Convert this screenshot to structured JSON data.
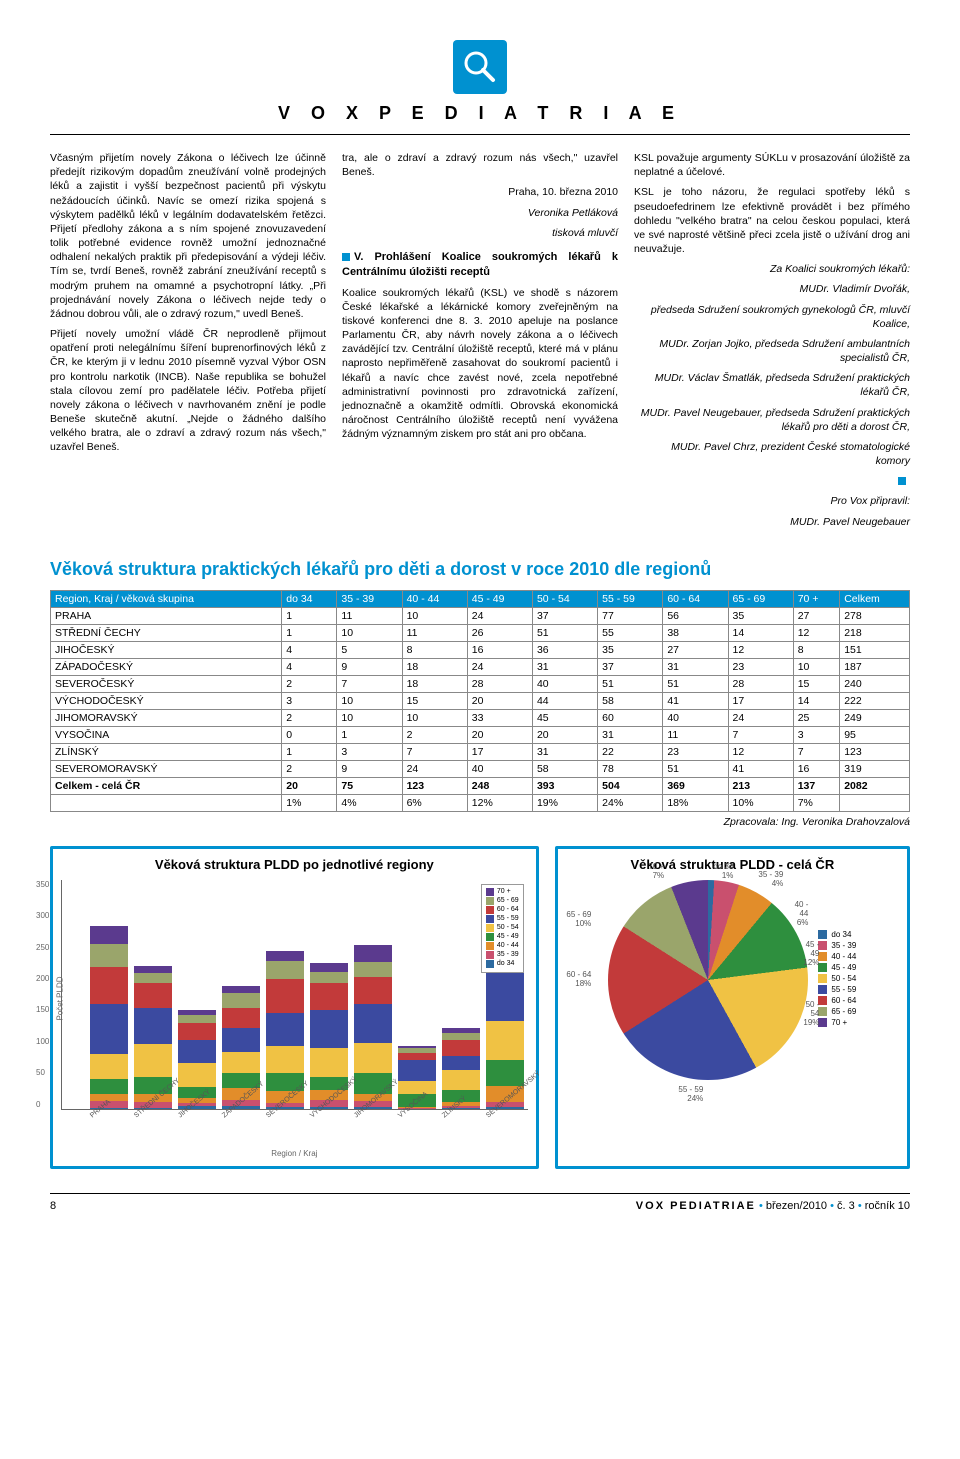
{
  "header": {
    "title": "V O X   P E D I A T R I A E"
  },
  "article": {
    "col1": [
      "Včasným přijetím novely Zákona o léčivech lze účinně předejít rizikovým dopadům zneužívání volně prodejných léků a zajistit i vyšší bezpečnost pacientů při výskytu nežádoucích účinků. Navíc se omezí rizika spojená s výskytem padělků léků v legálním dodavatelském řetězci. Přijetí předlohy zákona a s ním spojené znovuzavedení tolik potřebné evidence rovněž umožní jednoznačné odhalení nekalých praktik při předepisování a výdeji léčiv. Tím se, tvrdí Beneš, rovněž zabrání zneužívání receptů s modrým pruhem na omamné a psychotropní látky. „Při projednávání novely Zákona o léčivech nejde tedy o žádnou dobrou vůli, ale o zdravý rozum,\" uvedl Beneš.",
      "Přijetí novely umožní vládě ČR neprodleně přijmout opatření proti nelegálnímu šíření buprenorfinových léků z ČR, ke kterým ji v lednu 2010 písemně vyzval Výbor OSN pro kontrolu narkotik (INCB). Naše republika se bohužel stala cílovou zemí pro padělatele léčiv. Potřeba přijetí novely zákona o léčivech v navrhovaném znění je podle Beneše skutečně akutní. „Nejde o žádného dalšího velkého bratra, ale o zdraví a zdravý rozum nás všech,\" uzavřel Beneš."
    ],
    "col2_top": "tra, ale o zdraví a zdravý rozum nás všech,\" uzavřel Beneš.",
    "col2_date": "Praha, 10. března 2010",
    "col2_sig1": "Veronika Petláková",
    "col2_sig2": "tisková mluvčí",
    "col2_head": "V. Prohlášení Koalice soukromých lékařů k Centrálnímu úložišti receptů",
    "col2_body": "Koalice soukromých lékařů (KSL) ve shodě s názorem České lékařské a lékárnické komory zveřejněným na tiskové konferenci dne 8. 3. 2010 apeluje na poslance Parlamentu ČR, aby návrh novely zákona a o léčivech zavádějící tzv. Centrální úložiště receptů, které má v plánu naprosto nepřiměřeně zasahovat do soukromí pacientů i lékařů a navíc chce zavést nové, zcela nepotřebné administrativní povinnosti pro zdravotnická zařízení, jednoznačně a okamžitě odmítli. Obrovská ekonomická náročnost Centrálního úložiště receptů není vyvážena žádným významným ziskem pro stát ani pro občana.",
    "col3_p1": "KSL považuje argumenty SÚKLu v prosazování úložiště za neplatné a účelové.",
    "col3_p2": "KSL je toho názoru, že regulaci spotřeby léků s pseudoefedrinem lze efektivně provádět i bez přímého dohledu \"velkého bratra\" na celou českou populaci, která ve své naprosté většině přeci zcela jistě o užívání drog ani neuvažuje.",
    "col3_sig": [
      "Za Koalici soukromých lékařů:",
      "MUDr. Vladimír Dvořák,",
      "předseda Sdružení soukromých gynekologů ČR, mluvčí Koalice,",
      "MUDr. Zorjan Jojko, předseda Sdružení ambulantních specialistů ČR,",
      "MUDr. Václav Šmatlák, předseda Sdružení praktických lékařů ČR,",
      "MUDr. Pavel Neugebauer, předseda Sdružení praktických lékařů pro děti a dorost ČR,",
      "MUDr. Pavel Chrz, prezident České stomatologické komory"
    ],
    "col3_tail1": "Pro Vox připravil:",
    "col3_tail2": "MUDr. Pavel Neugebauer"
  },
  "table_section": {
    "title": "Věková struktura praktických lékařů pro děti a dorost v roce 2010 dle regionů",
    "headers": [
      "Region, Kraj / věková skupina",
      "do 34",
      "35 - 39",
      "40 - 44",
      "45 - 49",
      "50 - 54",
      "55 - 59",
      "60 - 64",
      "65 - 69",
      "70 +",
      "Celkem"
    ],
    "rows": [
      [
        "PRAHA",
        "1",
        "11",
        "10",
        "24",
        "37",
        "77",
        "56",
        "35",
        "27",
        "278"
      ],
      [
        "STŘEDNÍ ČECHY",
        "1",
        "10",
        "11",
        "26",
        "51",
        "55",
        "38",
        "14",
        "12",
        "218"
      ],
      [
        "JIHOČESKÝ",
        "4",
        "5",
        "8",
        "16",
        "36",
        "35",
        "27",
        "12",
        "8",
        "151"
      ],
      [
        "ZÁPADOČESKÝ",
        "4",
        "9",
        "18",
        "24",
        "31",
        "37",
        "31",
        "23",
        "10",
        "187"
      ],
      [
        "SEVEROČESKÝ",
        "2",
        "7",
        "18",
        "28",
        "40",
        "51",
        "51",
        "28",
        "15",
        "240"
      ],
      [
        "VÝCHODOČESKÝ",
        "3",
        "10",
        "15",
        "20",
        "44",
        "58",
        "41",
        "17",
        "14",
        "222"
      ],
      [
        "JIHOMORAVSKÝ",
        "2",
        "10",
        "10",
        "33",
        "45",
        "60",
        "40",
        "24",
        "25",
        "249"
      ],
      [
        "VYSOČINA",
        "0",
        "1",
        "2",
        "20",
        "20",
        "31",
        "11",
        "7",
        "3",
        "95"
      ],
      [
        "ZLÍNSKÝ",
        "1",
        "3",
        "7",
        "17",
        "31",
        "22",
        "23",
        "12",
        "7",
        "123"
      ],
      [
        "SEVEROMORAVSKÝ",
        "2",
        "9",
        "24",
        "40",
        "58",
        "78",
        "51",
        "41",
        "16",
        "319"
      ]
    ],
    "total": [
      "Celkem - celá ČR",
      "20",
      "75",
      "123",
      "248",
      "393",
      "504",
      "369",
      "213",
      "137",
      "2082"
    ],
    "pct": [
      "",
      "1%",
      "4%",
      "6%",
      "12%",
      "19%",
      "24%",
      "18%",
      "10%",
      "7%",
      ""
    ],
    "credit": "Zpracovala: Ing. Veronika Drahovzalová"
  },
  "barchart": {
    "title": "Věková struktura PLDD po jednotlivé regiony",
    "ylabel": "Počet PLDD",
    "xlabel": "Region / Kraj",
    "ymax": 350,
    "yticks": [
      0,
      50,
      100,
      150,
      200,
      250,
      300,
      350
    ],
    "categories": [
      "PRAHA",
      "STŘEDNÍ ČECHY",
      "JIHOČESKÝ",
      "ZÁPADOČESKÝ",
      "SEVEROČESKÝ",
      "VÝCHODOČESKÝ",
      "JIHOMORAVSKÝ",
      "VYSOČINA",
      "ZLÍNSKÝ",
      "SEVEROMORAVSKÝ"
    ],
    "legend": [
      "70 +",
      "65 - 69",
      "60 - 64",
      "55 - 59",
      "50 - 54",
      "45 - 49",
      "40 - 44",
      "35 - 39",
      "do 34"
    ],
    "legend_colors": [
      "#5b3a8e",
      "#9aa56b",
      "#c23a3a",
      "#3b4aa0",
      "#f0c244",
      "#2e8f3e",
      "#e28d2a",
      "#c9506e",
      "#2c6aa0"
    ],
    "stacks": [
      [
        1,
        11,
        10,
        24,
        37,
        77,
        56,
        35,
        27
      ],
      [
        1,
        10,
        11,
        26,
        51,
        55,
        38,
        14,
        12
      ],
      [
        4,
        5,
        8,
        16,
        36,
        35,
        27,
        12,
        8
      ],
      [
        4,
        9,
        18,
        24,
        31,
        37,
        31,
        23,
        10
      ],
      [
        2,
        7,
        18,
        28,
        40,
        51,
        51,
        28,
        15
      ],
      [
        3,
        10,
        15,
        20,
        44,
        58,
        41,
        17,
        14
      ],
      [
        2,
        10,
        10,
        33,
        45,
        60,
        40,
        24,
        25
      ],
      [
        0,
        1,
        2,
        20,
        20,
        31,
        11,
        7,
        3
      ],
      [
        1,
        3,
        7,
        17,
        31,
        22,
        23,
        12,
        7
      ],
      [
        2,
        9,
        24,
        40,
        58,
        78,
        51,
        41,
        16
      ]
    ],
    "seg_colors": [
      "#2c6aa0",
      "#c9506e",
      "#e28d2a",
      "#2e8f3e",
      "#f0c244",
      "#3b4aa0",
      "#c23a3a",
      "#9aa56b",
      "#5b3a8e"
    ]
  },
  "piechart": {
    "title": "Věková struktura PLDD - celá ČR",
    "labels": [
      "do 34",
      "35 - 39",
      "40 - 44",
      "45 - 49",
      "50 - 54",
      "55 - 59",
      "60 - 64",
      "65 - 69",
      "70 +"
    ],
    "colors": [
      "#2c6aa0",
      "#c9506e",
      "#e28d2a",
      "#2e8f3e",
      "#f0c244",
      "#3b4aa0",
      "#c23a3a",
      "#9aa56b",
      "#5b3a8e"
    ],
    "pcts": [
      1,
      4,
      6,
      12,
      19,
      24,
      18,
      10,
      7
    ],
    "callouts": {
      "60-64": "60 - 64\n18%",
      "55-59": "55 - 59\n24%",
      "65-69": "65 - 69\n10%",
      "70": "70 +\n7%",
      "do34": "do 34\n1%",
      "35-39": "35 - 39\n4%",
      "40-44": "40 - 44\n6%",
      "45-49": "45 - 49\n12%",
      "50-54": "50 - 54\n19%"
    }
  },
  "footer": {
    "page": "8",
    "brand": "VOX PEDIATRIAE",
    "issue": "březen/2010",
    "sep": "•",
    "num": "č. 3",
    "vol": "ročník 10"
  }
}
